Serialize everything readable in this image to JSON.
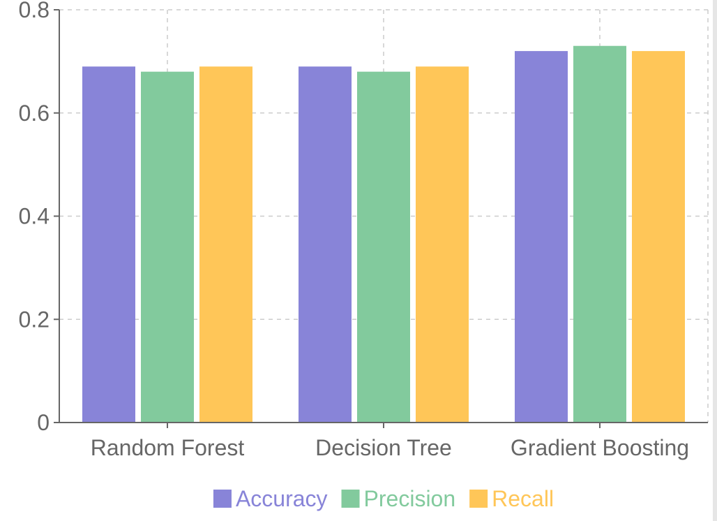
{
  "chart_data": {
    "type": "bar",
    "categories": [
      "Random Forest",
      "Decision Tree",
      "Gradient Boosting"
    ],
    "series": [
      {
        "name": "Accuracy",
        "color": "#8884d8",
        "values": [
          0.69,
          0.69,
          0.72
        ]
      },
      {
        "name": "Precision",
        "color": "#82ca9d",
        "values": [
          0.68,
          0.68,
          0.73
        ]
      },
      {
        "name": "Recall",
        "color": "#ffc658",
        "values": [
          0.69,
          0.69,
          0.72
        ]
      }
    ],
    "title": "",
    "xlabel": "",
    "ylabel": "",
    "ylim": [
      0,
      0.8
    ],
    "yticks": [
      "0",
      "0.2",
      "0.4",
      "0.6",
      "0.8"
    ],
    "grid": true,
    "grid_style": "dashed",
    "legend_position": "bottom-center"
  }
}
